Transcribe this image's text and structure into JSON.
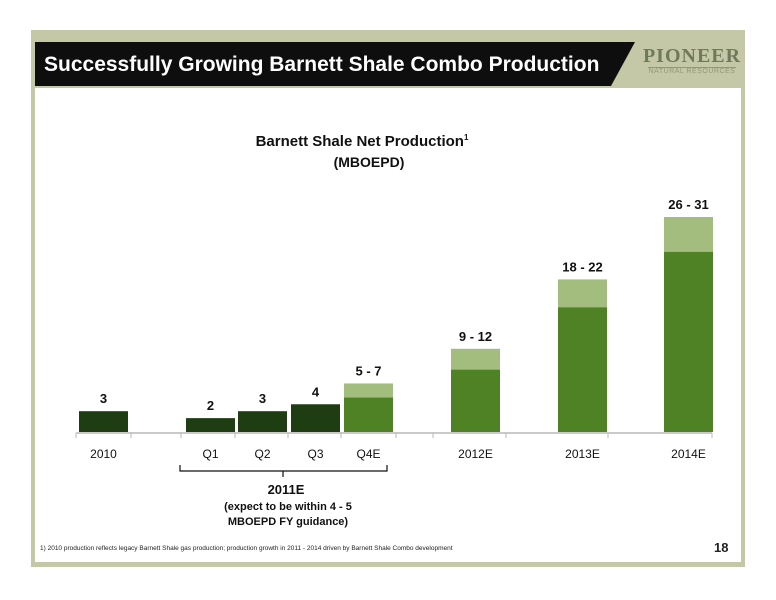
{
  "header": {
    "title": "Successfully Growing Barnett Shale Combo Production",
    "logo_main": "PIONEER",
    "logo_sub": "NATURAL RESOURCES"
  },
  "chart_data": {
    "type": "bar",
    "title": "Barnett Shale Net Production",
    "title_sup": "1",
    "subtitle": "(MBOEPD)",
    "categories": [
      "2010",
      "Q1",
      "Q2",
      "Q3",
      "Q4E",
      "2012E",
      "2013E",
      "2014E"
    ],
    "values_low": [
      3,
      2,
      3,
      4,
      5,
      9,
      18,
      26
    ],
    "values_high": [
      3,
      2,
      3,
      4,
      7,
      12,
      22,
      31
    ],
    "data_labels": [
      "3",
      "2",
      "3",
      "4",
      "5 - 7",
      "9 - 12",
      "18 - 22",
      "26 - 31"
    ],
    "group_label": "2011E",
    "group_note": [
      "(expect to be within 4 - 5",
      "MBOEPD FY guidance)"
    ],
    "ylim": [
      0,
      31
    ],
    "colors": {
      "actual": "#1e3d12",
      "estimate": "#4e8224",
      "range": "#a3bd7e",
      "axis": "#b8b8b8"
    }
  },
  "footer": {
    "footnote": "1) 2010 production reflects legacy Barnett Shale gas production; production growth in 2011 - 2014 driven by Barnett Shale Combo development",
    "page_number": "18"
  }
}
